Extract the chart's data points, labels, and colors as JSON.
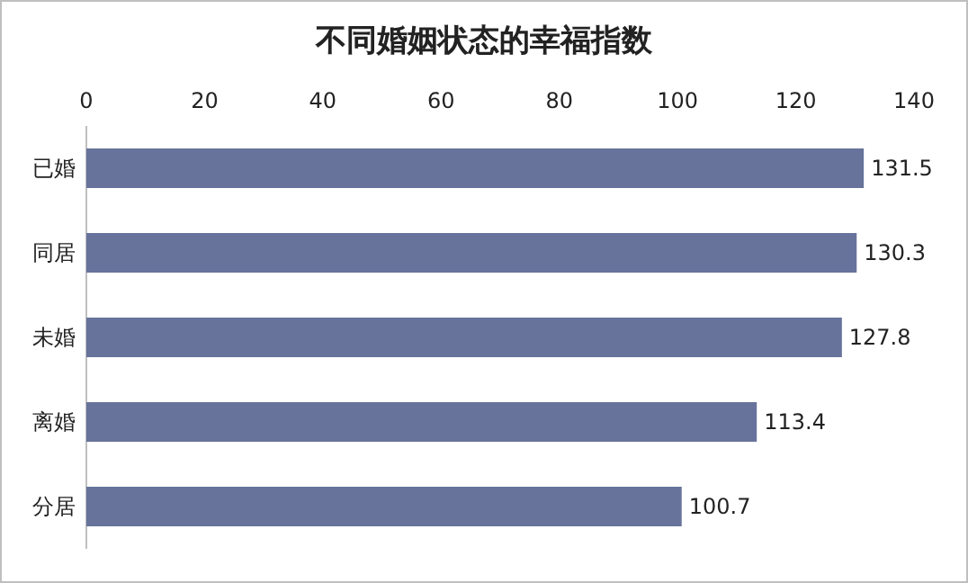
{
  "chart_data": {
    "type": "bar",
    "title": "不同婚姻状态的幸福指数",
    "orientation": "horizontal",
    "categories": [
      "已婚",
      "同居",
      "未婚",
      "离婚",
      "分居"
    ],
    "values": [
      131.5,
      130.3,
      127.8,
      113.4,
      100.7
    ],
    "color": "#67739a",
    "xlim": [
      0,
      140
    ],
    "xticks": [
      0,
      20,
      40,
      60,
      80,
      100,
      120,
      140
    ],
    "data_labels": true
  }
}
